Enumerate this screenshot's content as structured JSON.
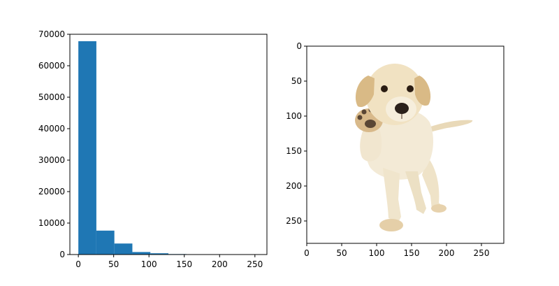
{
  "chart_data": [
    {
      "type": "bar",
      "subtype": "histogram",
      "bin_edges": [
        0,
        25.5,
        51,
        76.5,
        102,
        127.5,
        153,
        178.5,
        204,
        229.5,
        255
      ],
      "values": [
        67800,
        7600,
        3500,
        800,
        400,
        150,
        60,
        30,
        15,
        10
      ],
      "xlim": [
        -12,
        267
      ],
      "ylim": [
        0,
        70000
      ],
      "xticks": [
        0,
        50,
        100,
        150,
        200,
        250
      ],
      "yticks": [
        0,
        10000,
        20000,
        30000,
        40000,
        50000,
        60000,
        70000
      ],
      "xtick_labels": [
        "0",
        "50",
        "100",
        "150",
        "200",
        "250"
      ],
      "ytick_labels": [
        "0",
        "10000",
        "20000",
        "30000",
        "40000",
        "50000",
        "60000",
        "70000"
      ],
      "bar_color": "#1f77b4",
      "grid": false
    },
    {
      "type": "image",
      "image_subject": "labrador-puppy-raising-paw",
      "image_width": 282,
      "image_height": 282,
      "xticks": [
        0,
        50,
        100,
        150,
        200,
        250
      ],
      "yticks": [
        0,
        50,
        100,
        150,
        200,
        250
      ],
      "xtick_labels": [
        "0",
        "50",
        "100",
        "150",
        "200",
        "250"
      ],
      "ytick_labels": [
        "0",
        "50",
        "100",
        "150",
        "200",
        "250"
      ],
      "grid": false
    }
  ]
}
